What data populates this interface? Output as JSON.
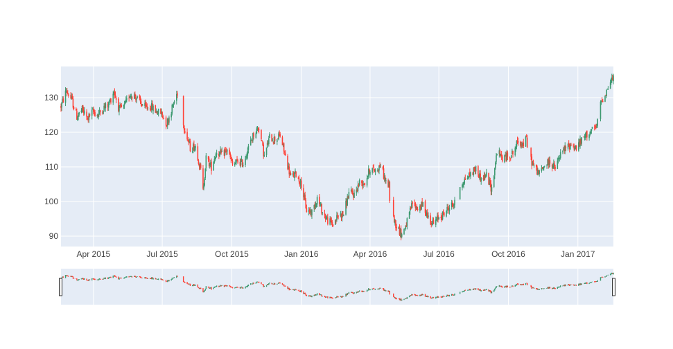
{
  "chart_data": {
    "type": "candlestick",
    "x_ticks": [
      "Apr 2015",
      "Jul 2015",
      "Oct 2015",
      "Jan 2016",
      "Apr 2016",
      "Jul 2016",
      "Oct 2016",
      "Jan 2017"
    ],
    "x_tick_dates": [
      "2015-04-01",
      "2015-07-01",
      "2015-10-01",
      "2016-01-01",
      "2016-04-01",
      "2016-07-01",
      "2016-10-01",
      "2017-01-01"
    ],
    "y_ticks": [
      90,
      100,
      110,
      120,
      130
    ],
    "xlim": [
      "2015-02-17",
      "2017-02-17"
    ],
    "ylim": [
      87,
      139
    ],
    "grid": true,
    "rangeslider": true,
    "colors": {
      "increasing": "#3d9970",
      "decreasing": "#ff4136",
      "plot_background": "#e5ecf6",
      "grid": "#ffffff"
    },
    "price_path": [
      [
        "2015-02-17",
        127.5
      ],
      [
        "2015-02-24",
        132.0
      ],
      [
        "2015-03-03",
        129.5
      ],
      [
        "2015-03-10",
        124.5
      ],
      [
        "2015-03-17",
        126.5
      ],
      [
        "2015-03-24",
        124.0
      ],
      [
        "2015-03-31",
        126.0
      ],
      [
        "2015-04-07",
        125.0
      ],
      [
        "2015-04-14",
        127.0
      ],
      [
        "2015-04-21",
        128.0
      ],
      [
        "2015-04-28",
        132.0
      ],
      [
        "2015-05-05",
        126.5
      ],
      [
        "2015-05-12",
        127.5
      ],
      [
        "2015-05-19",
        131.0
      ],
      [
        "2015-05-26",
        130.5
      ],
      [
        "2015-06-02",
        128.5
      ],
      [
        "2015-06-09",
        127.0
      ],
      [
        "2015-06-16",
        127.5
      ],
      [
        "2015-06-23",
        126.0
      ],
      [
        "2015-06-30",
        125.5
      ],
      [
        "2015-07-07",
        122.5
      ],
      [
        "2015-07-14",
        127.0
      ],
      [
        "2015-07-21",
        131.5
      ],
      [
        "2015-07-24",
        125.0
      ],
      [
        "2015-07-31",
        121.0
      ],
      [
        "2015-08-07",
        115.5
      ],
      [
        "2015-08-14",
        116.0
      ],
      [
        "2015-08-21",
        109.0
      ],
      [
        "2015-08-24",
        103.0
      ],
      [
        "2015-08-28",
        112.5
      ],
      [
        "2015-09-04",
        110.0
      ],
      [
        "2015-09-11",
        114.5
      ],
      [
        "2015-09-18",
        113.5
      ],
      [
        "2015-09-25",
        115.0
      ],
      [
        "2015-10-02",
        110.5
      ],
      [
        "2015-10-09",
        111.5
      ],
      [
        "2015-10-16",
        111.0
      ],
      [
        "2015-10-23",
        115.5
      ],
      [
        "2015-10-30",
        119.5
      ],
      [
        "2015-11-06",
        121.5
      ],
      [
        "2015-11-13",
        113.0
      ],
      [
        "2015-11-20",
        118.5
      ],
      [
        "2015-11-27",
        118.0
      ],
      [
        "2015-12-04",
        119.0
      ],
      [
        "2015-12-11",
        113.0
      ],
      [
        "2015-12-18",
        107.0
      ],
      [
        "2015-12-25",
        108.0
      ],
      [
        "2016-01-01",
        105.0
      ],
      [
        "2016-01-08",
        97.5
      ],
      [
        "2016-01-15",
        97.0
      ],
      [
        "2016-01-22",
        101.0
      ],
      [
        "2016-01-29",
        97.0
      ],
      [
        "2016-02-05",
        94.5
      ],
      [
        "2016-02-12",
        93.5
      ],
      [
        "2016-02-19",
        96.0
      ],
      [
        "2016-02-26",
        96.5
      ],
      [
        "2016-03-04",
        102.5
      ],
      [
        "2016-03-11",
        102.0
      ],
      [
        "2016-03-18",
        105.5
      ],
      [
        "2016-03-25",
        105.5
      ],
      [
        "2016-04-01",
        109.5
      ],
      [
        "2016-04-08",
        109.0
      ],
      [
        "2016-04-15",
        110.5
      ],
      [
        "2016-04-22",
        105.5
      ],
      [
        "2016-04-26",
        104.5
      ],
      [
        "2016-04-28",
        97.5
      ],
      [
        "2016-05-06",
        93.0
      ],
      [
        "2016-05-13",
        90.5
      ],
      [
        "2016-05-20",
        94.0
      ],
      [
        "2016-05-27",
        99.5
      ],
      [
        "2016-06-03",
        98.0
      ],
      [
        "2016-06-10",
        99.0
      ],
      [
        "2016-06-17",
        95.5
      ],
      [
        "2016-06-24",
        93.5
      ],
      [
        "2016-07-01",
        95.5
      ],
      [
        "2016-07-08",
        96.5
      ],
      [
        "2016-07-15",
        98.5
      ],
      [
        "2016-07-22",
        99.5
      ],
      [
        "2016-07-27",
        104.0
      ],
      [
        "2016-08-05",
        106.5
      ],
      [
        "2016-08-12",
        108.0
      ],
      [
        "2016-08-19",
        109.5
      ],
      [
        "2016-08-26",
        106.5
      ],
      [
        "2016-09-02",
        107.5
      ],
      [
        "2016-09-09",
        103.5
      ],
      [
        "2016-09-16",
        114.5
      ],
      [
        "2016-09-23",
        112.5
      ],
      [
        "2016-09-30",
        113.0
      ],
      [
        "2016-10-07",
        114.0
      ],
      [
        "2016-10-14",
        117.5
      ],
      [
        "2016-10-21",
        116.5
      ],
      [
        "2016-10-25",
        118.0
      ],
      [
        "2016-10-27",
        114.0
      ],
      [
        "2016-11-04",
        110.0
      ],
      [
        "2016-11-11",
        108.0
      ],
      [
        "2016-11-18",
        110.5
      ],
      [
        "2016-11-25",
        111.5
      ],
      [
        "2016-12-02",
        109.5
      ],
      [
        "2016-12-09",
        113.5
      ],
      [
        "2016-12-16",
        115.5
      ],
      [
        "2016-12-23",
        116.5
      ],
      [
        "2016-12-30",
        115.5
      ],
      [
        "2017-01-06",
        117.5
      ],
      [
        "2017-01-13",
        119.5
      ],
      [
        "2017-01-20",
        120.5
      ],
      [
        "2017-01-26",
        121.5
      ],
      [
        "2017-01-31",
        128.5
      ],
      [
        "2017-02-07",
        131.5
      ],
      [
        "2017-02-14",
        135.0
      ],
      [
        "2017-02-17",
        135.5
      ]
    ],
    "gaps": [
      [
        "2015-07-21",
        "2015-07-29"
      ],
      [
        "2016-04-27",
        "2016-05-01"
      ],
      [
        "2016-07-22",
        "2016-07-29"
      ],
      [
        "2016-10-26",
        "2016-10-31"
      ],
      [
        "2017-01-27",
        "2017-01-31"
      ]
    ]
  }
}
